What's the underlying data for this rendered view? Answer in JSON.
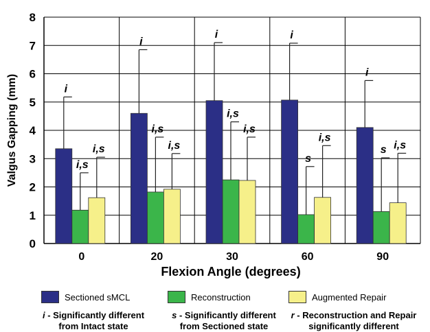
{
  "chart_data": {
    "type": "bar",
    "title": "",
    "xlabel": "Flexion Angle (degrees)",
    "ylabel": "Valgus Gapping (mm)",
    "categories": [
      "0",
      "20",
      "30",
      "60",
      "90"
    ],
    "ylim": [
      0,
      8
    ],
    "yticks": [
      "0",
      "1",
      "2",
      "3",
      "4",
      "5",
      "6",
      "7",
      "8"
    ],
    "grid": "horizontal",
    "legend_position": "bottom",
    "series": [
      {
        "name": "Sectioned sMCL",
        "color": "#2b2f86",
        "values": [
          3.35,
          4.6,
          5.05,
          5.07,
          4.1
        ],
        "error_upper": [
          5.18,
          6.85,
          7.1,
          7.08,
          5.76
        ],
        "annotations": [
          "i",
          "i",
          "i",
          "i",
          "i"
        ]
      },
      {
        "name": "Reconstruction",
        "color": "#3bb54a",
        "values": [
          1.18,
          1.82,
          2.25,
          1.02,
          1.13
        ],
        "error_upper": [
          2.5,
          3.76,
          4.3,
          2.72,
          3.03
        ],
        "annotations": [
          "i,s",
          "i,s",
          "i,s",
          "s",
          "s"
        ]
      },
      {
        "name": "Augmented Repair",
        "color": "#f6f08a",
        "values": [
          1.62,
          1.92,
          2.23,
          1.63,
          1.44
        ],
        "error_upper": [
          3.05,
          3.18,
          3.76,
          3.46,
          3.19
        ],
        "annotations": [
          "i,s",
          "i,s",
          "i,s",
          "i,s",
          "i,s"
        ]
      }
    ]
  },
  "notes": [
    {
      "symbol": "i",
      "line1": " - Significantly different",
      "line2": "from Intact state"
    },
    {
      "symbol": "s",
      "line1": " - Significantly different",
      "line2": "from Sectioned state"
    },
    {
      "symbol": "r",
      "line1": " - Reconstruction and Repair",
      "line2": "significantly different"
    }
  ]
}
